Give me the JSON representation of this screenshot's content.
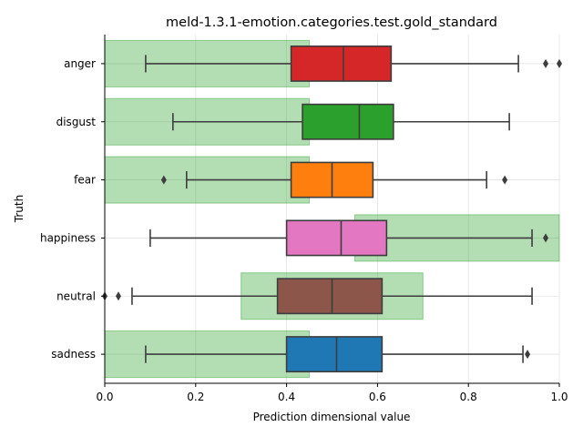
{
  "chart_data": {
    "type": "box",
    "title": "meld-1.3.1-emotion.categories.test.gold_standard",
    "xlabel": "Prediction dimensional value",
    "ylabel": "Truth",
    "xlim": [
      0,
      1
    ],
    "xticks": [
      "0.0",
      "0.2",
      "0.4",
      "0.6",
      "0.8",
      "1.0"
    ],
    "grid": true,
    "orientation": "horizontal",
    "categories": [
      "anger",
      "disgust",
      "fear",
      "happiness",
      "neutral",
      "sadness"
    ],
    "boxes": [
      {
        "category": "anger",
        "whisker_low": 0.09,
        "q1": 0.41,
        "median": 0.525,
        "q3": 0.63,
        "whisker_high": 0.91,
        "outliers": [
          0.97,
          1.0
        ],
        "color": "#d62728"
      },
      {
        "category": "disgust",
        "whisker_low": 0.15,
        "q1": 0.435,
        "median": 0.56,
        "q3": 0.635,
        "whisker_high": 0.89,
        "outliers": [],
        "color": "#2ca02c"
      },
      {
        "category": "fear",
        "whisker_low": 0.18,
        "q1": 0.41,
        "median": 0.5,
        "q3": 0.59,
        "whisker_high": 0.84,
        "outliers": [
          0.13,
          0.88
        ],
        "color": "#ff7f0e"
      },
      {
        "category": "happiness",
        "whisker_low": 0.1,
        "q1": 0.4,
        "median": 0.52,
        "q3": 0.62,
        "whisker_high": 0.94,
        "outliers": [
          0.97
        ],
        "color": "#e377c2"
      },
      {
        "category": "neutral",
        "whisker_low": 0.06,
        "q1": 0.38,
        "median": 0.5,
        "q3": 0.61,
        "whisker_high": 0.94,
        "outliers": [
          0.0,
          0.03
        ],
        "color": "#8c564b"
      },
      {
        "category": "sadness",
        "whisker_low": 0.09,
        "q1": 0.4,
        "median": 0.51,
        "q3": 0.61,
        "whisker_high": 0.92,
        "outliers": [
          0.93
        ],
        "color": "#1f77b4"
      }
    ],
    "gold_standard_ranges": [
      {
        "category": "anger",
        "range": [
          0.0,
          0.45
        ]
      },
      {
        "category": "disgust",
        "range": [
          0.0,
          0.45
        ]
      },
      {
        "category": "fear",
        "range": [
          0.0,
          0.45
        ]
      },
      {
        "category": "happiness",
        "range": [
          0.55,
          1.0
        ]
      },
      {
        "category": "neutral",
        "range": [
          0.3,
          0.7
        ]
      },
      {
        "category": "sadness",
        "range": [
          0.0,
          0.45
        ]
      }
    ],
    "range_color": "#2ca02c"
  }
}
